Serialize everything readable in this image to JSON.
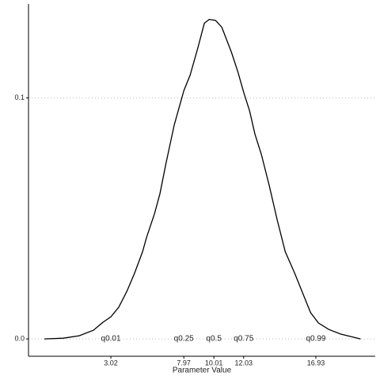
{
  "chart_data": {
    "type": "line",
    "x_label": "Parameter Value",
    "x": [
      -1.5,
      -0.21,
      0.87,
      1.84,
      2.48,
      3.02,
      3.56,
      4.1,
      4.63,
      5.17,
      5.44,
      5.98,
      6.35,
      6.78,
      7.32,
      7.97,
      8.4,
      8.93,
      9.36,
      9.69,
      10.12,
      10.55,
      11.2,
      11.63,
      12.05,
      12.43,
      12.8,
      13.23,
      13.77,
      14.31,
      14.85,
      15.49,
      16.03,
      16.57,
      17.11,
      17.81,
      18.62,
      19.96
    ],
    "values": [
      0,
      0.0003,
      0.0013,
      0.0036,
      0.0069,
      0.0092,
      0.0132,
      0.0197,
      0.0273,
      0.0362,
      0.0421,
      0.052,
      0.0602,
      0.0734,
      0.0888,
      0.103,
      0.1095,
      0.121,
      0.131,
      0.1326,
      0.1322,
      0.1293,
      0.119,
      0.111,
      0.102,
      0.0947,
      0.0849,
      0.0766,
      0.0635,
      0.0493,
      0.0362,
      0.0273,
      0.0191,
      0.0109,
      0.0066,
      0.0039,
      0.002,
      0
    ],
    "color": "#000000",
    "xlim": [
      -2.57,
      20.96
    ],
    "ylim": [
      -0.0072,
      0.139
    ],
    "xticks": [
      3.02,
      7.97,
      10.01,
      12.03,
      16.93
    ],
    "yticks": [
      {
        "value": 0,
        "label": "0.0"
      },
      0.1
    ],
    "grid": true,
    "annotations": [
      {
        "text": "q0.01",
        "x": 3.02
      },
      {
        "text": "q0.25",
        "x": 7.97
      },
      {
        "text": "q0.5",
        "x": 10.01
      },
      {
        "text": "q0.75",
        "x": 12.03
      },
      {
        "text": "q0.99",
        "x": 16.93
      }
    ]
  }
}
